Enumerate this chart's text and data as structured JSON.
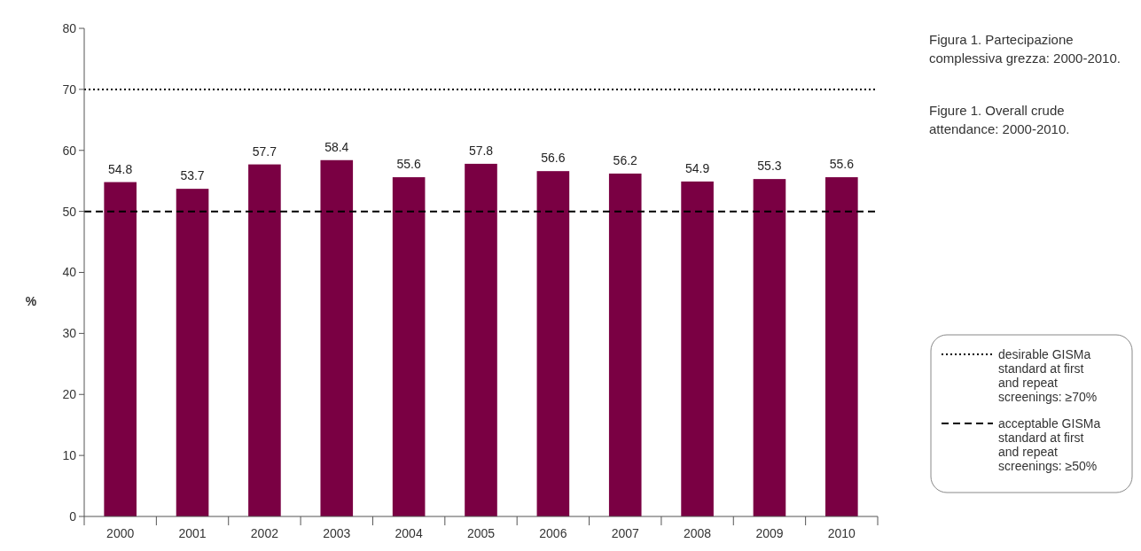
{
  "chart_data": {
    "type": "bar",
    "title": "Figura 1. Partecipazione complessiva grezza: 2000-2010.",
    "subtitle": "Figure 1. Overall crude attendance: 2000-2010.",
    "ylabel": "%",
    "categories": [
      "2000",
      "2001",
      "2002",
      "2003",
      "2004",
      "2005",
      "2006",
      "2007",
      "2008",
      "2009",
      "2010"
    ],
    "values": [
      54.8,
      53.7,
      57.7,
      58.4,
      55.6,
      57.8,
      56.6,
      56.2,
      54.9,
      55.3,
      55.6
    ],
    "color": "#7a0043",
    "data_labels": true,
    "ylim": [
      0,
      80
    ],
    "yticks": [
      0,
      10,
      20,
      30,
      40,
      50,
      60,
      70,
      80
    ],
    "grid": false,
    "legend": "right",
    "ref_lines": [
      {
        "axis": "y",
        "value": 70,
        "label": "desirable GISMa standard at first and repeat screenings: ≥70%",
        "line_style": "dotted",
        "color": "#000000"
      },
      {
        "axis": "y",
        "value": 50,
        "label": "acceptable GISMa standard at first and repeat screenings: ≥50%",
        "line_style": "dashed",
        "color": "#000000"
      }
    ]
  }
}
